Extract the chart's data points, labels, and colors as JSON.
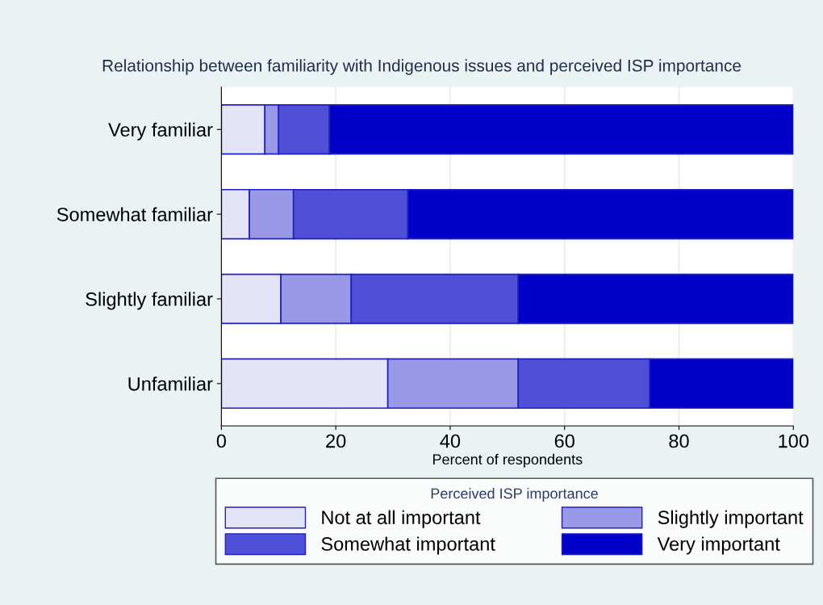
{
  "chart_data": {
    "type": "bar",
    "orientation": "horizontal",
    "stacked": true,
    "title": "Relationship between familiarity with Indigenous issues and perceived ISP importance",
    "xlabel": "Percent of respondents",
    "legend_title": "Perceived ISP importance",
    "categories": [
      "Very familiar",
      "Somewhat familiar",
      "Slightly familiar",
      "Unfamiliar"
    ],
    "series": [
      {
        "name": "Not at all important",
        "color": "#e4e4f8",
        "values": [
          7.6,
          4.9,
          10.4,
          29.1
        ]
      },
      {
        "name": "Slightly important",
        "color": "#9999e8",
        "values": [
          2.4,
          7.7,
          12.3,
          22.8
        ]
      },
      {
        "name": "Somewhat important",
        "color": "#4f4fd8",
        "values": [
          8.9,
          20.0,
          29.2,
          23.0
        ]
      },
      {
        "name": "Very important",
        "color": "#0000c8",
        "values": [
          81.1,
          67.4,
          48.1,
          25.1
        ]
      }
    ],
    "xlim": [
      0,
      100
    ],
    "xticks": [
      0,
      20,
      40,
      60,
      80,
      100
    ],
    "grid": "x",
    "legend": "bottom"
  }
}
